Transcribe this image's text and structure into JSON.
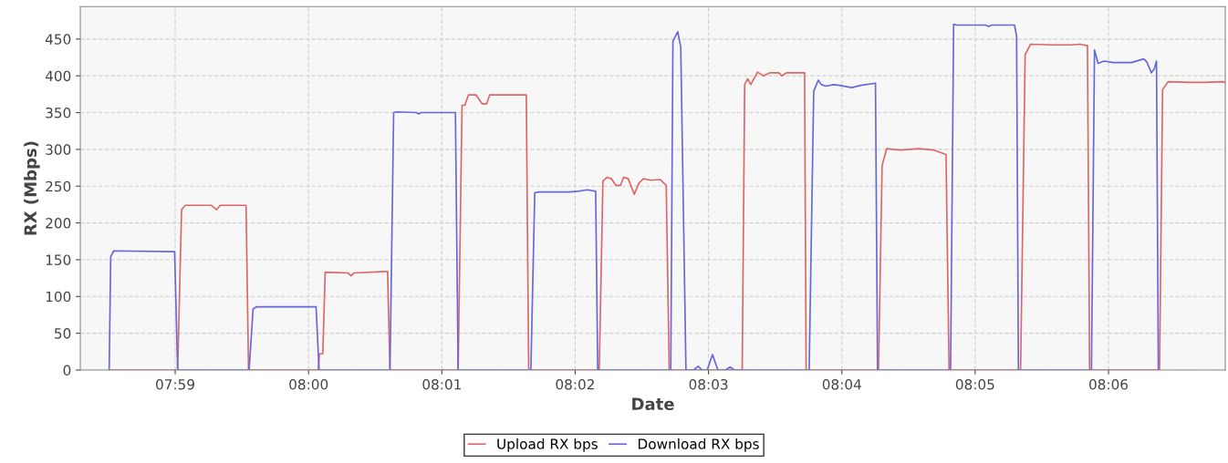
{
  "chart_data": {
    "type": "line",
    "xlabel": "Date",
    "ylabel": "RX (Mbps)",
    "xlim": [
      7.97147,
      8.1146
    ],
    "ylim": [
      0,
      494
    ],
    "xticks": [
      {
        "value": 7.98333,
        "label": "07:59"
      },
      {
        "value": 8.0,
        "label": "08:00"
      },
      {
        "value": 8.01667,
        "label": "08:01"
      },
      {
        "value": 8.03333,
        "label": "08:02"
      },
      {
        "value": 8.05,
        "label": "08:03"
      },
      {
        "value": 8.06667,
        "label": "08:04"
      },
      {
        "value": 8.08333,
        "label": "08:05"
      },
      {
        "value": 8.1,
        "label": "08:06"
      }
    ],
    "yticks": [
      0,
      50,
      100,
      150,
      200,
      250,
      300,
      350,
      400,
      450
    ],
    "grid": true,
    "legend": "bottom",
    "line_style": "solid",
    "marker": "none",
    "series": [
      {
        "name": "Upload RX bps",
        "color": "#dd6666",
        "x": [
          7.97508,
          7.98364,
          7.98413,
          7.98459,
          7.98782,
          7.98851,
          7.98896,
          7.99219,
          7.9925,
          8.00121,
          8.00136,
          8.00178,
          8.00208,
          8.00493,
          8.00531,
          8.00569,
          8.00969,
          8.00988,
          8.01018,
          8.0187,
          8.01919,
          8.01954,
          8.01999,
          8.02094,
          8.0217,
          8.02227,
          8.02265,
          8.02722,
          8.02752,
          8.03634,
          8.0368,
          8.03729,
          8.03786,
          8.03843,
          8.039,
          8.03938,
          8.03996,
          8.04072,
          8.04129,
          8.04186,
          8.04281,
          8.04395,
          8.04471,
          8.04509,
          8.05421,
          8.05452,
          8.0549,
          8.05528,
          8.05612,
          8.05688,
          8.05764,
          8.05878,
          8.05916,
          8.05973,
          8.06201,
          8.0622,
          8.07125,
          8.0717,
          8.07227,
          8.07399,
          8.07627,
          8.07817,
          8.07969,
          8.08007,
          8.08901,
          8.08958,
          8.09026,
          8.093,
          8.09528,
          8.09642,
          8.09737,
          8.09764,
          8.10638,
          8.10676,
          8.10745,
          8.11011,
          8.11201,
          8.11429,
          8.1146
        ],
        "values": [
          0,
          0,
          218,
          224,
          224,
          218,
          224,
          224,
          0,
          0,
          22,
          22,
          133,
          132,
          128,
          132,
          134,
          134,
          0,
          0,
          360,
          360,
          374,
          374,
          362,
          362,
          374,
          374,
          0,
          0,
          257,
          262,
          260,
          251,
          251,
          262,
          260,
          239,
          254,
          260,
          258,
          259,
          251,
          0,
          0,
          388,
          396,
          388,
          405,
          400,
          404,
          404,
          400,
          404,
          404,
          0,
          0,
          278,
          301,
          299,
          301,
          299,
          293,
          0,
          0,
          429,
          443,
          442,
          442,
          443,
          441,
          0,
          0,
          381,
          392,
          391,
          391,
          392,
          391
        ]
      },
      {
        "name": "Download RX bps",
        "color": "#6666dd",
        "x": [
          7.97508,
          7.97527,
          7.97565,
          7.98326,
          7.98364,
          7.99257,
          7.99307,
          7.99353,
          8.00094,
          8.00132,
          8.01018,
          8.01064,
          8.01102,
          8.01349,
          8.01376,
          8.01406,
          8.01836,
          8.0187,
          8.02779,
          8.02828,
          8.02874,
          8.03254,
          8.03368,
          8.03482,
          8.03589,
          8.03615,
          8.04528,
          8.04555,
          8.04615,
          8.04653,
          8.04718,
          8.04813,
          8.0487,
          8.0492,
          8.04984,
          8.05049,
          8.05117,
          8.05212,
          8.05269,
          8.05326,
          8.06258,
          8.06315,
          8.06372,
          8.0641,
          8.06467,
          8.06562,
          8.06638,
          8.0679,
          8.06904,
          8.07087,
          8.07113,
          8.08026,
          8.08064,
          8.08102,
          8.08463,
          8.08501,
          8.08539,
          8.08825,
          8.08851,
          8.08874,
          8.09787,
          8.09825,
          8.0987,
          8.09946,
          8.1006,
          8.10289,
          8.10441,
          8.10479,
          8.10536,
          8.10574,
          8.106,
          8.10623
        ],
        "values": [
          0,
          154,
          162,
          161,
          0,
          0,
          83,
          86,
          86,
          0,
          0,
          350,
          351,
          350,
          348,
          350,
          350,
          0,
          0,
          241,
          242,
          242,
          243,
          245,
          243,
          0,
          0,
          447,
          460,
          439,
          0,
          0,
          5,
          0,
          0,
          21,
          0,
          0,
          4,
          0,
          0,
          379,
          394,
          388,
          386,
          388,
          387,
          384,
          387,
          390,
          0,
          0,
          470,
          469,
          469,
          467,
          469,
          469,
          454,
          0,
          0,
          435,
          417,
          420,
          418,
          418,
          423,
          419,
          404,
          410,
          420,
          0
        ]
      }
    ]
  }
}
